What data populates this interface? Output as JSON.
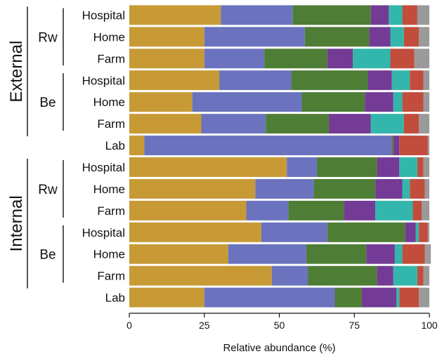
{
  "chart_data": {
    "type": "bar",
    "orientation": "horizontal",
    "stacked": true,
    "title": "",
    "xlabel": "Relative abundance (%)",
    "ylabel": "",
    "xlim": [
      0,
      100
    ],
    "xticks": [
      0,
      25,
      50,
      75,
      100
    ],
    "grid": false,
    "legend": "none",
    "segment_colors": [
      "#c79a36",
      "#6b73be",
      "#4e7d35",
      "#733b95",
      "#33b6ab",
      "#c24d3c",
      "#9a9a9a"
    ],
    "groups": [
      {
        "label": "External",
        "subgroups": [
          {
            "label": "Rw",
            "rows": [
              0,
              1,
              2
            ]
          },
          {
            "label": "Be",
            "rows": [
              3,
              4,
              5
            ]
          }
        ]
      },
      {
        "label": "Internal",
        "subgroups": [
          {
            "label": "Rw",
            "rows": [
              7,
              8,
              9
            ]
          },
          {
            "label": "Be",
            "rows": [
              10,
              11,
              12
            ]
          }
        ]
      }
    ],
    "rows": [
      {
        "label": "Hospital",
        "values": [
          30.5,
          24,
          26,
          6,
          4.5,
          5,
          4
        ]
      },
      {
        "label": "Home",
        "values": [
          25,
          33.5,
          21.5,
          7,
          4.5,
          5,
          3.5
        ]
      },
      {
        "label": "Farm",
        "values": [
          25,
          20,
          21,
          8.5,
          12.5,
          8,
          5
        ]
      },
      {
        "label": "Hospital",
        "values": [
          30,
          24,
          25.5,
          8,
          6,
          4.5,
          2
        ]
      },
      {
        "label": "Home",
        "values": [
          21,
          36.5,
          21,
          9.5,
          3,
          7,
          2
        ]
      },
      {
        "label": "Farm",
        "values": [
          24,
          21.5,
          21,
          14,
          11,
          5,
          3.5
        ]
      },
      {
        "label": "Lab",
        "values": [
          5,
          82.5,
          0.5,
          2,
          0,
          9.5,
          0.5
        ]
      },
      {
        "label": "Hospital",
        "values": [
          52.5,
          10,
          20,
          7.5,
          6,
          2,
          2
        ]
      },
      {
        "label": "Home",
        "values": [
          42,
          19.5,
          20.5,
          9,
          2.5,
          5,
          1.5
        ]
      },
      {
        "label": "Farm",
        "values": [
          39,
          14,
          18.5,
          10.5,
          12.5,
          3,
          2.5
        ]
      },
      {
        "label": "Hospital",
        "values": [
          44,
          22,
          26,
          3.5,
          1,
          3,
          0.5
        ]
      },
      {
        "label": "Home",
        "values": [
          33,
          26,
          20,
          9.5,
          2.5,
          7.5,
          2
        ]
      },
      {
        "label": "Farm",
        "values": [
          47.5,
          12,
          23,
          5.5,
          8,
          2,
          2
        ]
      },
      {
        "label": "Lab",
        "values": [
          25,
          43.5,
          9,
          11.5,
          1,
          6.5,
          3.5
        ]
      }
    ]
  }
}
